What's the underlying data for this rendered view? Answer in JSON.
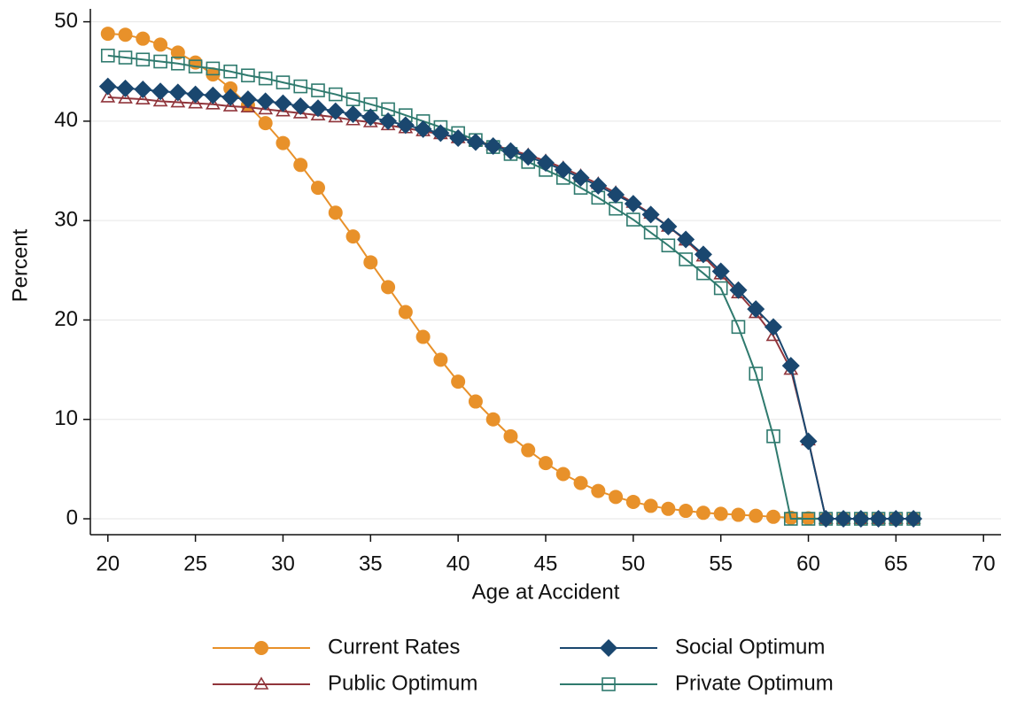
{
  "chart_data": {
    "type": "line",
    "x": [
      20,
      21,
      22,
      23,
      24,
      25,
      26,
      27,
      28,
      29,
      30,
      31,
      32,
      33,
      34,
      35,
      36,
      37,
      38,
      39,
      40,
      41,
      42,
      43,
      44,
      45,
      46,
      47,
      48,
      49,
      50,
      51,
      52,
      53,
      54,
      55,
      56,
      57,
      58,
      59,
      60,
      61,
      62,
      63,
      64,
      65,
      66
    ],
    "xlabel": "Age at Accident",
    "ylabel": "Percent",
    "xlim": [
      19,
      71
    ],
    "ylim": [
      -1.6,
      51.3
    ],
    "xticks": [
      20,
      25,
      30,
      35,
      40,
      45,
      50,
      55,
      60,
      65,
      70
    ],
    "yticks": [
      0,
      10,
      20,
      30,
      40,
      50
    ],
    "grid": true,
    "legend": "bottom",
    "series": [
      {
        "name": "Current Rates",
        "color": "#e8912a",
        "marker": "circle",
        "values": [
          48.8,
          48.7,
          48.3,
          47.7,
          46.9,
          45.9,
          44.7,
          43.3,
          41.6,
          39.8,
          37.8,
          35.6,
          33.3,
          30.8,
          28.4,
          25.8,
          23.3,
          20.8,
          18.3,
          16.0,
          13.8,
          11.8,
          10.0,
          8.3,
          6.9,
          5.6,
          4.5,
          3.6,
          2.8,
          2.2,
          1.7,
          1.3,
          1.0,
          0.8,
          0.6,
          0.5,
          0.4,
          0.3,
          0.2,
          0.1,
          0.05,
          0,
          0,
          0,
          0,
          0,
          0
        ]
      },
      {
        "name": "Social Optimum",
        "color": "#1a476f",
        "marker": "diamond",
        "values": [
          43.5,
          43.3,
          43.2,
          43.0,
          42.9,
          42.7,
          42.6,
          42.4,
          42.2,
          42.0,
          41.8,
          41.5,
          41.3,
          41.0,
          40.7,
          40.4,
          40.0,
          39.6,
          39.2,
          38.8,
          38.3,
          37.9,
          37.5,
          37.0,
          36.4,
          35.8,
          35.1,
          34.3,
          33.5,
          32.6,
          31.7,
          30.6,
          29.4,
          28.1,
          26.6,
          24.9,
          23.0,
          21.1,
          19.3,
          15.4,
          7.8,
          0,
          0,
          0,
          0,
          0,
          0
        ]
      },
      {
        "name": "Public Optimum",
        "color": "#90353b",
        "marker": "triangle",
        "values": [
          42.4,
          42.3,
          42.2,
          42.0,
          41.9,
          41.8,
          41.7,
          41.5,
          41.4,
          41.2,
          41.0,
          40.8,
          40.6,
          40.4,
          40.1,
          39.9,
          39.6,
          39.3,
          39.0,
          38.7,
          38.3,
          38.0,
          37.6,
          37.1,
          36.6,
          36.0,
          35.3,
          34.5,
          33.7,
          32.8,
          31.8,
          30.7,
          29.4,
          28.0,
          26.4,
          24.6,
          22.7,
          20.7,
          18.4,
          15.0,
          7.9,
          0,
          0,
          0,
          0,
          0,
          0
        ]
      },
      {
        "name": "Private Optimum",
        "color": "#2f7a6e",
        "marker": "square",
        "values": [
          46.6,
          46.4,
          46.2,
          46.0,
          45.8,
          45.5,
          45.3,
          45.0,
          44.6,
          44.3,
          43.9,
          43.5,
          43.1,
          42.7,
          42.2,
          41.7,
          41.2,
          40.6,
          40.0,
          39.4,
          38.8,
          38.1,
          37.4,
          36.7,
          35.9,
          35.1,
          34.3,
          33.3,
          32.3,
          31.2,
          30.1,
          28.8,
          27.5,
          26.1,
          24.7,
          23.2,
          19.3,
          14.6,
          8.3,
          0,
          0,
          0,
          0,
          0,
          0,
          0,
          0
        ]
      }
    ]
  }
}
